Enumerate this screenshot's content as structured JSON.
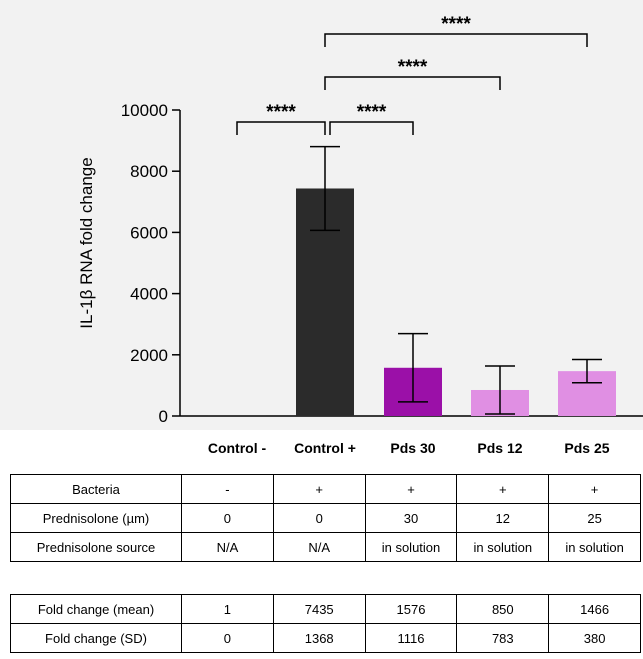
{
  "chart_data": {
    "type": "bar",
    "ylabel": "IL-1β RNA fold change",
    "ylim": [
      0,
      10000
    ],
    "yticks": [
      "0",
      "2000",
      "4000",
      "6000",
      "8000",
      "10000"
    ],
    "categories": [
      "Control -",
      "Control +",
      "Pds 30",
      "Pds 12",
      "Pds 25"
    ],
    "values": [
      1,
      7435,
      1576,
      850,
      1466
    ],
    "sd": [
      0,
      1368,
      1116,
      783,
      380
    ],
    "colors": [
      "#222222",
      "#2b2b2b",
      "#9b10a8",
      "#e08fe3",
      "#e08fe3"
    ],
    "significance": [
      {
        "from": "Control -",
        "to": "Control +",
        "label": "****"
      },
      {
        "from": "Control +",
        "to": "Pds 30",
        "label": "****"
      },
      {
        "from": "Control +",
        "to": "Pds 12",
        "label": "****"
      },
      {
        "from": "Control +",
        "to": "Pds 25",
        "label": "****"
      }
    ],
    "grid": false
  },
  "table_top": {
    "rows": [
      {
        "label": "Bacteria",
        "cells": [
          "-",
          "+",
          "+",
          "+",
          "+"
        ]
      },
      {
        "label": "Prednisolone (µm)",
        "cells": [
          "0",
          "0",
          "30",
          "12",
          "25"
        ]
      },
      {
        "label": "Prednisolone source",
        "cells": [
          "N/A",
          "N/A",
          "in solution",
          "in solution",
          "in solution"
        ]
      }
    ]
  },
  "table_bottom": {
    "rows": [
      {
        "label": "Fold change (mean)",
        "cells": [
          "1",
          "7435",
          "1576",
          "850",
          "1466"
        ]
      },
      {
        "label": "Fold change (SD)",
        "cells": [
          "0",
          "1368",
          "1116",
          "783",
          "380"
        ]
      }
    ]
  }
}
